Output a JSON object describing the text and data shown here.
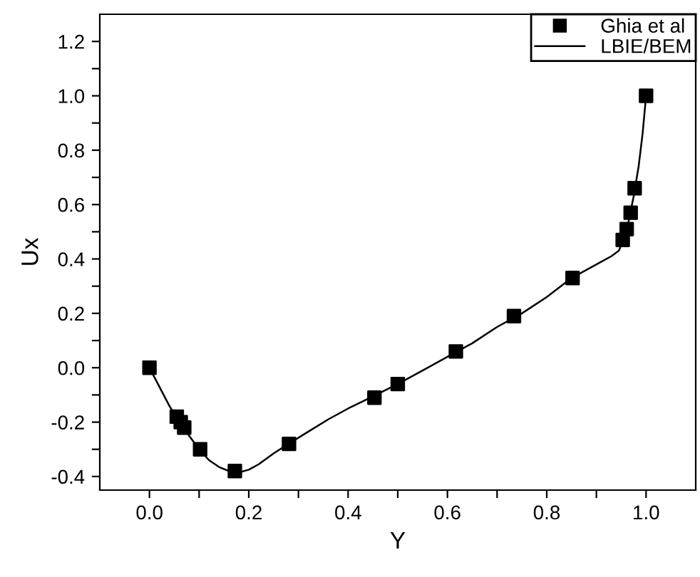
{
  "chart_data": {
    "type": "line",
    "xlabel": "Y",
    "ylabel": "Ux",
    "xlim": [
      -0.1,
      1.1
    ],
    "ylim": [
      -0.45,
      1.3
    ],
    "xticks": [
      {
        "value": 0.0,
        "label": "0.0"
      },
      {
        "value": 0.1,
        "label": null
      },
      {
        "value": 0.2,
        "label": "0.2"
      },
      {
        "value": 0.3,
        "label": null
      },
      {
        "value": 0.4,
        "label": "0.4"
      },
      {
        "value": 0.5,
        "label": null
      },
      {
        "value": 0.6,
        "label": "0.6"
      },
      {
        "value": 0.7,
        "label": null
      },
      {
        "value": 0.8,
        "label": "0.8"
      },
      {
        "value": 0.9,
        "label": null
      },
      {
        "value": 1.0,
        "label": "1.0"
      }
    ],
    "yticks": [
      {
        "value": -0.4,
        "label": "-0.4"
      },
      {
        "value": -0.3,
        "label": null
      },
      {
        "value": -0.2,
        "label": "-0.2"
      },
      {
        "value": -0.1,
        "label": null
      },
      {
        "value": 0.0,
        "label": "0.0"
      },
      {
        "value": 0.1,
        "label": null
      },
      {
        "value": 0.2,
        "label": "0.2"
      },
      {
        "value": 0.3,
        "label": null
      },
      {
        "value": 0.4,
        "label": "0.4"
      },
      {
        "value": 0.5,
        "label": null
      },
      {
        "value": 0.6,
        "label": "0.6"
      },
      {
        "value": 0.7,
        "label": null
      },
      {
        "value": 0.8,
        "label": "0.8"
      },
      {
        "value": 0.9,
        "label": null
      },
      {
        "value": 1.0,
        "label": "1.0"
      },
      {
        "value": 1.1,
        "label": null
      },
      {
        "value": 1.2,
        "label": "1.2"
      }
    ],
    "grid": false,
    "legend": "top right",
    "series": [
      {
        "name": "Ghia et al",
        "type": "scatter",
        "marker": "square",
        "color": "#000000",
        "x": [
          0,
          0.055,
          0.063,
          0.07,
          0.102,
          0.172,
          0.281,
          0.453,
          0.5,
          0.617,
          0.734,
          0.852,
          0.953,
          0.961,
          0.969,
          0.977,
          1.0
        ],
        "values": [
          0,
          -0.18,
          -0.2,
          -0.22,
          -0.3,
          -0.38,
          -0.28,
          -0.11,
          -0.06,
          0.06,
          0.19,
          0.33,
          0.47,
          0.51,
          0.57,
          0.66,
          1.0
        ]
      },
      {
        "name": "LBIE/BEM",
        "marker": "none",
        "line_style": "solid",
        "color": "#000000",
        "x": [
          0,
          0.02,
          0.04,
          0.06,
          0.08,
          0.1,
          0.12,
          0.14,
          0.16,
          0.18,
          0.2,
          0.22,
          0.25,
          0.28,
          0.32,
          0.36,
          0.4,
          0.45,
          0.5,
          0.55,
          0.6,
          0.65,
          0.7,
          0.75,
          0.8,
          0.85,
          0.88,
          0.91,
          0.93,
          0.945,
          0.955,
          0.965,
          0.975,
          0.985,
          0.993,
          1.0
        ],
        "values": [
          0,
          -0.07,
          -0.14,
          -0.2,
          -0.25,
          -0.3,
          -0.34,
          -0.365,
          -0.38,
          -0.385,
          -0.375,
          -0.355,
          -0.315,
          -0.28,
          -0.235,
          -0.19,
          -0.15,
          -0.105,
          -0.06,
          -0.01,
          0.04,
          0.09,
          0.15,
          0.2,
          0.26,
          0.33,
          0.36,
          0.39,
          0.41,
          0.43,
          0.47,
          0.54,
          0.63,
          0.74,
          0.86,
          1.0
        ]
      }
    ]
  }
}
